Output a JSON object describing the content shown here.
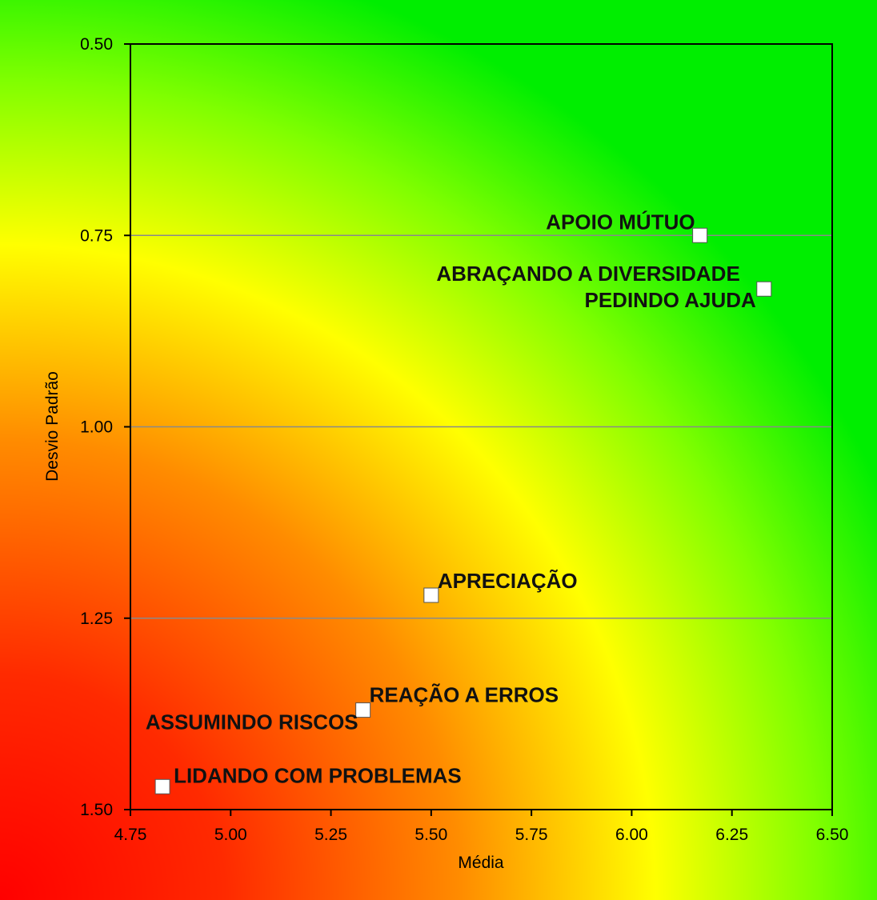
{
  "chart_data": {
    "type": "scatter",
    "title": "",
    "xlabel": "Média",
    "ylabel": "Desvio Padrão",
    "xlim": [
      4.75,
      6.5
    ],
    "ylim": [
      0.5,
      1.5
    ],
    "y_inverted": true,
    "x_ticks": [
      "4.75",
      "5.00",
      "5.25",
      "5.50",
      "5.75",
      "6.00",
      "6.25",
      "6.50"
    ],
    "y_ticks": [
      "0.50",
      "0.75",
      "1.00",
      "1.25",
      "1.50"
    ],
    "grid": "horizontal",
    "background": "gradient red-yellow-green",
    "colors": {
      "red": "#ff0000",
      "orange": "#ff8c00",
      "yellow": "#ffff00",
      "green": "#00ee00",
      "marker": "#ffffff"
    },
    "points": [
      {
        "label": "APOIO MÚTUO",
        "x": 6.17,
        "y": 0.75
      },
      {
        "label": "ABRAÇANDO A DIVERSIDADE",
        "x": 6.33,
        "y": 0.82
      },
      {
        "label": "PEDINDO AJUDA",
        "x": 6.33,
        "y": 0.82
      },
      {
        "label": "APRECIAÇÃO",
        "x": 5.5,
        "y": 1.22
      },
      {
        "label": "REAÇÃO A ERROS",
        "x": 5.33,
        "y": 1.37
      },
      {
        "label": "ASSUMINDO RISCOS",
        "x": 5.33,
        "y": 1.37
      },
      {
        "label": "LIDANDO COM PROBLEMAS",
        "x": 4.83,
        "y": 1.47
      }
    ]
  }
}
